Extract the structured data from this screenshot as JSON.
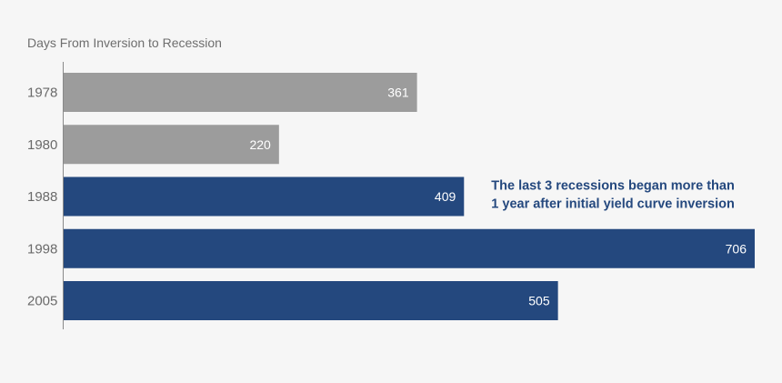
{
  "chart_data": {
    "type": "bar",
    "orientation": "horizontal",
    "title": "Days From Inversion to Recession",
    "xlabel": "",
    "ylabel": "",
    "categories": [
      "1978",
      "1980",
      "1988",
      "1998",
      "2005"
    ],
    "values": [
      361,
      220,
      409,
      706,
      505
    ],
    "data_labels": [
      "361",
      "220",
      "409",
      "706",
      "505"
    ],
    "bar_colors": [
      "#9c9c9c",
      "#9c9c9c",
      "#24487e",
      "#24487e",
      "#24487e"
    ],
    "xlim": [
      0,
      706
    ],
    "grid": false,
    "legend": "none",
    "annotation": {
      "lines": [
        "The last 3 recessions began more than",
        "1 year after initial yield curve inversion"
      ],
      "color": "#24487e",
      "near_category": "1988"
    }
  },
  "colors": {
    "background": "#f6f6f6",
    "axis": "#8a8a8a",
    "gray_bar": "#9c9c9c",
    "blue_bar": "#24487e"
  }
}
